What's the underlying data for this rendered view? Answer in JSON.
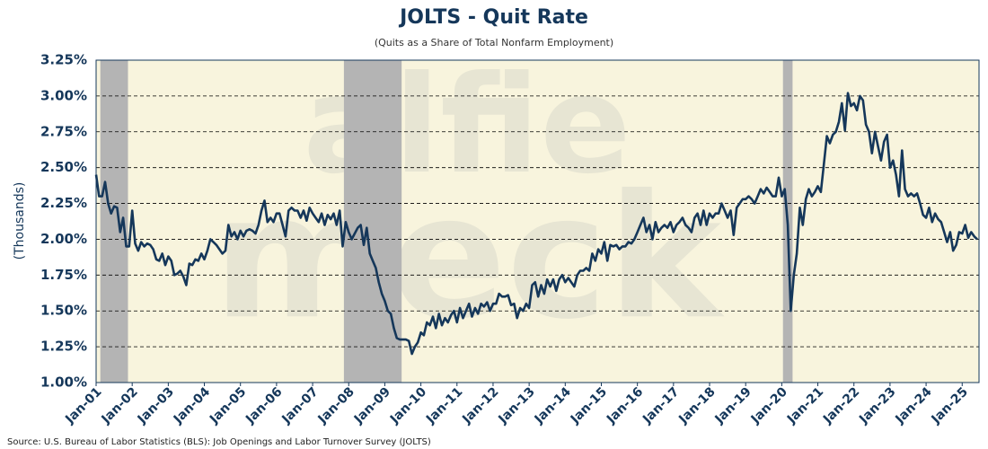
{
  "chart_data": {
    "type": "line",
    "title": "JOLTS - Quit Rate",
    "subtitle": "(Quits as a Share of Total Nonfarm Employment)",
    "y_label": "(Thousands)",
    "source": "Source: U.S. Bureau of Labor Statistics (BLS): Job Openings and Labor Turnover Survey (JOLTS)",
    "watermark": [
      "alfie",
      "meck"
    ],
    "color": "#15375a",
    "grid": true,
    "x": [
      "2001-01",
      "2001-02",
      "2001-03",
      "2001-04",
      "2001-05",
      "2001-06",
      "2001-07",
      "2001-08",
      "2001-09",
      "2001-10",
      "2001-11",
      "2001-12",
      "2002-01",
      "2002-02",
      "2002-03",
      "2002-04",
      "2002-05",
      "2002-06",
      "2002-07",
      "2002-08",
      "2002-09",
      "2002-10",
      "2002-11",
      "2002-12",
      "2003-01",
      "2003-02",
      "2003-03",
      "2003-04",
      "2003-05",
      "2003-06",
      "2003-07",
      "2003-08",
      "2003-09",
      "2003-10",
      "2003-11",
      "2003-12",
      "2004-01",
      "2004-02",
      "2004-03",
      "2004-04",
      "2004-05",
      "2004-06",
      "2004-07",
      "2004-08",
      "2004-09",
      "2004-10",
      "2004-11",
      "2004-12",
      "2005-01",
      "2005-02",
      "2005-03",
      "2005-04",
      "2005-05",
      "2005-06",
      "2005-07",
      "2005-08",
      "2005-09",
      "2005-10",
      "2005-11",
      "2005-12",
      "2006-01",
      "2006-02",
      "2006-03",
      "2006-04",
      "2006-05",
      "2006-06",
      "2006-07",
      "2006-08",
      "2006-09",
      "2006-10",
      "2006-11",
      "2006-12",
      "2007-01",
      "2007-02",
      "2007-03",
      "2007-04",
      "2007-05",
      "2007-06",
      "2007-07",
      "2007-08",
      "2007-09",
      "2007-10",
      "2007-11",
      "2007-12",
      "2008-01",
      "2008-02",
      "2008-03",
      "2008-04",
      "2008-05",
      "2008-06",
      "2008-07",
      "2008-08",
      "2008-09",
      "2008-10",
      "2008-11",
      "2008-12",
      "2009-01",
      "2009-02",
      "2009-03",
      "2009-04",
      "2009-05",
      "2009-06",
      "2009-07",
      "2009-08",
      "2009-09",
      "2009-10",
      "2009-11",
      "2009-12",
      "2010-01",
      "2010-02",
      "2010-03",
      "2010-04",
      "2010-05",
      "2010-06",
      "2010-07",
      "2010-08",
      "2010-09",
      "2010-10",
      "2010-11",
      "2010-12",
      "2011-01",
      "2011-02",
      "2011-03",
      "2011-04",
      "2011-05",
      "2011-06",
      "2011-07",
      "2011-08",
      "2011-09",
      "2011-10",
      "2011-11",
      "2011-12",
      "2012-01",
      "2012-02",
      "2012-03",
      "2012-04",
      "2012-05",
      "2012-06",
      "2012-07",
      "2012-08",
      "2012-09",
      "2012-10",
      "2012-11",
      "2012-12",
      "2013-01",
      "2013-02",
      "2013-03",
      "2013-04",
      "2013-05",
      "2013-06",
      "2013-07",
      "2013-08",
      "2013-09",
      "2013-10",
      "2013-11",
      "2013-12",
      "2014-01",
      "2014-02",
      "2014-03",
      "2014-04",
      "2014-05",
      "2014-06",
      "2014-07",
      "2014-08",
      "2014-09",
      "2014-10",
      "2014-11",
      "2014-12",
      "2015-01",
      "2015-02",
      "2015-03",
      "2015-04",
      "2015-05",
      "2015-06",
      "2015-07",
      "2015-08",
      "2015-09",
      "2015-10",
      "2015-11",
      "2015-12",
      "2016-01",
      "2016-02",
      "2016-03",
      "2016-04",
      "2016-05",
      "2016-06",
      "2016-07",
      "2016-08",
      "2016-09",
      "2016-10",
      "2016-11",
      "2016-12",
      "2017-01",
      "2017-02",
      "2017-03",
      "2017-04",
      "2017-05",
      "2017-06",
      "2017-07",
      "2017-08",
      "2017-09",
      "2017-10",
      "2017-11",
      "2017-12",
      "2018-01",
      "2018-02",
      "2018-03",
      "2018-04",
      "2018-05",
      "2018-06",
      "2018-07",
      "2018-08",
      "2018-09",
      "2018-10",
      "2018-11",
      "2018-12",
      "2019-01",
      "2019-02",
      "2019-03",
      "2019-04",
      "2019-05",
      "2019-06",
      "2019-07",
      "2019-08",
      "2019-09",
      "2019-10",
      "2019-11",
      "2019-12",
      "2020-01",
      "2020-02",
      "2020-03",
      "2020-04",
      "2020-05",
      "2020-06",
      "2020-07",
      "2020-08",
      "2020-09",
      "2020-10",
      "2020-11",
      "2020-12",
      "2021-01",
      "2021-02",
      "2021-03",
      "2021-04",
      "2021-05",
      "2021-06",
      "2021-07",
      "2021-08",
      "2021-09",
      "2021-10",
      "2021-11",
      "2021-12",
      "2022-01",
      "2022-02",
      "2022-03",
      "2022-04",
      "2022-05",
      "2022-06",
      "2022-07",
      "2022-08",
      "2022-09",
      "2022-10",
      "2022-11",
      "2022-12",
      "2023-01",
      "2023-02",
      "2023-03",
      "2023-04",
      "2023-05",
      "2023-06",
      "2023-07",
      "2023-08",
      "2023-09",
      "2023-10",
      "2023-11",
      "2023-12",
      "2024-01",
      "2024-02",
      "2024-03",
      "2024-04",
      "2024-05",
      "2024-06",
      "2024-07",
      "2024-08",
      "2024-09",
      "2024-10",
      "2024-11",
      "2024-12",
      "2025-01",
      "2025-02",
      "2025-03",
      "2025-04",
      "2025-05",
      "2025-06"
    ],
    "values": [
      2.45,
      2.3,
      2.3,
      2.4,
      2.25,
      2.18,
      2.23,
      2.22,
      2.05,
      2.15,
      1.95,
      1.95,
      2.2,
      1.97,
      1.92,
      1.98,
      1.95,
      1.97,
      1.96,
      1.93,
      1.86,
      1.85,
      1.9,
      1.82,
      1.88,
      1.85,
      1.75,
      1.76,
      1.78,
      1.74,
      1.68,
      1.83,
      1.82,
      1.86,
      1.85,
      1.9,
      1.86,
      1.92,
      2.0,
      1.98,
      1.96,
      1.93,
      1.9,
      1.92,
      2.1,
      2.02,
      2.05,
      2.0,
      2.06,
      2.02,
      2.06,
      2.07,
      2.06,
      2.04,
      2.1,
      2.2,
      2.27,
      2.12,
      2.15,
      2.12,
      2.18,
      2.18,
      2.1,
      2.02,
      2.2,
      2.22,
      2.2,
      2.2,
      2.15,
      2.2,
      2.13,
      2.22,
      2.18,
      2.15,
      2.12,
      2.18,
      2.1,
      2.17,
      2.14,
      2.18,
      2.1,
      2.2,
      1.95,
      2.12,
      2.05,
      2.0,
      2.04,
      2.08,
      2.1,
      1.96,
      2.08,
      1.9,
      1.85,
      1.8,
      1.7,
      1.62,
      1.57,
      1.5,
      1.48,
      1.38,
      1.31,
      1.3,
      1.3,
      1.3,
      1.29,
      1.2,
      1.25,
      1.28,
      1.35,
      1.33,
      1.42,
      1.4,
      1.46,
      1.38,
      1.48,
      1.4,
      1.45,
      1.42,
      1.47,
      1.5,
      1.42,
      1.52,
      1.45,
      1.5,
      1.55,
      1.46,
      1.52,
      1.48,
      1.55,
      1.53,
      1.56,
      1.5,
      1.55,
      1.55,
      1.62,
      1.6,
      1.6,
      1.61,
      1.54,
      1.55,
      1.45,
      1.52,
      1.5,
      1.55,
      1.52,
      1.68,
      1.7,
      1.6,
      1.68,
      1.62,
      1.72,
      1.67,
      1.72,
      1.64,
      1.72,
      1.75,
      1.7,
      1.73,
      1.7,
      1.67,
      1.75,
      1.78,
      1.78,
      1.8,
      1.78,
      1.9,
      1.85,
      1.93,
      1.9,
      1.98,
      1.85,
      1.96,
      1.95,
      1.96,
      1.93,
      1.95,
      1.95,
      1.98,
      1.97,
      2.0,
      2.05,
      2.1,
      2.15,
      2.05,
      2.1,
      2.0,
      2.12,
      2.05,
      2.08,
      2.1,
      2.08,
      2.12,
      2.05,
      2.1,
      2.12,
      2.15,
      2.1,
      2.08,
      2.05,
      2.15,
      2.18,
      2.1,
      2.2,
      2.1,
      2.18,
      2.15,
      2.18,
      2.18,
      2.25,
      2.2,
      2.15,
      2.2,
      2.03,
      2.22,
      2.25,
      2.28,
      2.28,
      2.3,
      2.28,
      2.25,
      2.3,
      2.35,
      2.32,
      2.36,
      2.33,
      2.3,
      2.3,
      2.43,
      2.3,
      2.35,
      2.1,
      1.5,
      1.75,
      1.9,
      2.22,
      2.1,
      2.28,
      2.35,
      2.3,
      2.33,
      2.37,
      2.33,
      2.52,
      2.72,
      2.67,
      2.73,
      2.75,
      2.82,
      2.95,
      2.76,
      3.02,
      2.93,
      2.95,
      2.9,
      3.0,
      2.97,
      2.8,
      2.75,
      2.6,
      2.75,
      2.65,
      2.55,
      2.68,
      2.73,
      2.5,
      2.55,
      2.45,
      2.3,
      2.62,
      2.35,
      2.3,
      2.32,
      2.3,
      2.32,
      2.25,
      2.17,
      2.15,
      2.22,
      2.12,
      2.18,
      2.14,
      2.12,
      2.05,
      1.98,
      2.05,
      1.92,
      1.96,
      2.05,
      2.04,
      2.1,
      2.01,
      2.05,
      2.02,
      2.0
    ],
    "xlim": [
      "2001-01",
      "2025-06"
    ],
    "xticks": [
      {
        "value": "2001-01",
        "label": "Jan-01"
      },
      {
        "value": "2002-01",
        "label": "Jan-02"
      },
      {
        "value": "2003-01",
        "label": "Jan-03"
      },
      {
        "value": "2004-01",
        "label": "Jan-04"
      },
      {
        "value": "2005-01",
        "label": "Jan-05"
      },
      {
        "value": "2006-01",
        "label": "Jan-06"
      },
      {
        "value": "2007-01",
        "label": "Jan-07"
      },
      {
        "value": "2008-01",
        "label": "Jan-08"
      },
      {
        "value": "2009-01",
        "label": "Jan-09"
      },
      {
        "value": "2010-01",
        "label": "Jan-10"
      },
      {
        "value": "2011-01",
        "label": "Jan-11"
      },
      {
        "value": "2012-01",
        "label": "Jan-12"
      },
      {
        "value": "2013-01",
        "label": "Jan-13"
      },
      {
        "value": "2014-01",
        "label": "Jan-14"
      },
      {
        "value": "2015-01",
        "label": "Jan-15"
      },
      {
        "value": "2016-01",
        "label": "Jan-16"
      },
      {
        "value": "2017-01",
        "label": "Jan-17"
      },
      {
        "value": "2018-01",
        "label": "Jan-18"
      },
      {
        "value": "2019-01",
        "label": "Jan-19"
      },
      {
        "value": "2020-01",
        "label": "Jan-20"
      },
      {
        "value": "2021-01",
        "label": "Jan-21"
      },
      {
        "value": "2022-01",
        "label": "Jan-22"
      },
      {
        "value": "2023-01",
        "label": "Jan-23"
      },
      {
        "value": "2024-01",
        "label": "Jan-24"
      },
      {
        "value": "2025-01",
        "label": "Jan-25"
      }
    ],
    "ylim": [
      1.0,
      3.25
    ],
    "yticks": [
      {
        "value": 1.0,
        "label": "1.00%"
      },
      {
        "value": 1.25,
        "label": "1.25%"
      },
      {
        "value": 1.5,
        "label": "1.50%"
      },
      {
        "value": 1.75,
        "label": "1.75%"
      },
      {
        "value": 2.0,
        "label": "2.00%"
      },
      {
        "value": 2.25,
        "label": "2.25%"
      },
      {
        "value": 2.5,
        "label": "2.50%"
      },
      {
        "value": 2.75,
        "label": "2.75%"
      },
      {
        "value": 3.0,
        "label": "3.00%"
      },
      {
        "value": 3.25,
        "label": "3.25%"
      }
    ],
    "recessions": [
      [
        "2001-03",
        "2001-11"
      ],
      [
        "2007-12",
        "2009-06"
      ],
      [
        "2020-02",
        "2020-04"
      ]
    ]
  }
}
